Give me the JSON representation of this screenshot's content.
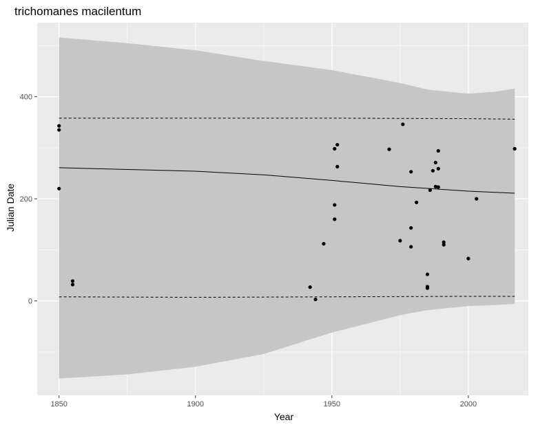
{
  "chart_data": {
    "type": "scatter",
    "title": "trichomanes macilentum",
    "xlabel": "Year",
    "ylabel": "Julian Date",
    "xlim": [
      1842,
      2022
    ],
    "ylim": [
      -185,
      545
    ],
    "x_ticks": [
      1850,
      1900,
      1950,
      2000
    ],
    "y_ticks": [
      0,
      200,
      400
    ],
    "grid": true,
    "legend": "none",
    "colors": {
      "panel": "#ebebeb",
      "grid": "#ffffff",
      "band": "#c6c6c6",
      "points": "#000000",
      "lines": "#000000"
    },
    "points": [
      {
        "x": 1850,
        "y": 343
      },
      {
        "x": 1850,
        "y": 335
      },
      {
        "x": 1850,
        "y": 220
      },
      {
        "x": 1855,
        "y": 39
      },
      {
        "x": 1855,
        "y": 32
      },
      {
        "x": 1942,
        "y": 27
      },
      {
        "x": 1944,
        "y": 3
      },
      {
        "x": 1947,
        "y": 112
      },
      {
        "x": 1951,
        "y": 298
      },
      {
        "x": 1951,
        "y": 188
      },
      {
        "x": 1951,
        "y": 160
      },
      {
        "x": 1952,
        "y": 306
      },
      {
        "x": 1952,
        "y": 263
      },
      {
        "x": 1971,
        "y": 297
      },
      {
        "x": 1975,
        "y": 118
      },
      {
        "x": 1976,
        "y": 346
      },
      {
        "x": 1979,
        "y": 253
      },
      {
        "x": 1979,
        "y": 143
      },
      {
        "x": 1979,
        "y": 106
      },
      {
        "x": 1981,
        "y": 193
      },
      {
        "x": 1985,
        "y": 52
      },
      {
        "x": 1985,
        "y": 28
      },
      {
        "x": 1985,
        "y": 25
      },
      {
        "x": 1986,
        "y": 217
      },
      {
        "x": 1987,
        "y": 255
      },
      {
        "x": 1988,
        "y": 271
      },
      {
        "x": 1988,
        "y": 224
      },
      {
        "x": 1989,
        "y": 294
      },
      {
        "x": 1989,
        "y": 259
      },
      {
        "x": 1989,
        "y": 223
      },
      {
        "x": 1991,
        "y": 115
      },
      {
        "x": 1991,
        "y": 110
      },
      {
        "x": 2000,
        "y": 83
      },
      {
        "x": 2003,
        "y": 200
      },
      {
        "x": 2017,
        "y": 298
      }
    ],
    "fit_line": {
      "x": [
        1850,
        1900,
        1925,
        1950,
        1975,
        2000,
        2017
      ],
      "y": [
        261,
        254,
        247,
        236,
        224,
        215,
        211
      ]
    },
    "band": {
      "x": [
        1850,
        1875,
        1900,
        1925,
        1950,
        1975,
        1985,
        2000,
        2010,
        2017
      ],
      "upper": [
        516,
        505,
        491,
        470,
        452,
        427,
        414,
        406,
        410,
        416
      ],
      "lower": [
        -152,
        -144,
        -129,
        -104,
        -62,
        -28,
        -18,
        -10,
        -8,
        -6
      ]
    },
    "upper_dashed": {
      "x": [
        1850,
        1900,
        1950,
        2000,
        2017
      ],
      "y": [
        358,
        358,
        358,
        357,
        356
      ]
    },
    "lower_dashed": {
      "x": [
        1850,
        1900,
        1950,
        2000,
        2017
      ],
      "y": [
        8,
        7,
        8,
        9,
        9
      ]
    }
  }
}
